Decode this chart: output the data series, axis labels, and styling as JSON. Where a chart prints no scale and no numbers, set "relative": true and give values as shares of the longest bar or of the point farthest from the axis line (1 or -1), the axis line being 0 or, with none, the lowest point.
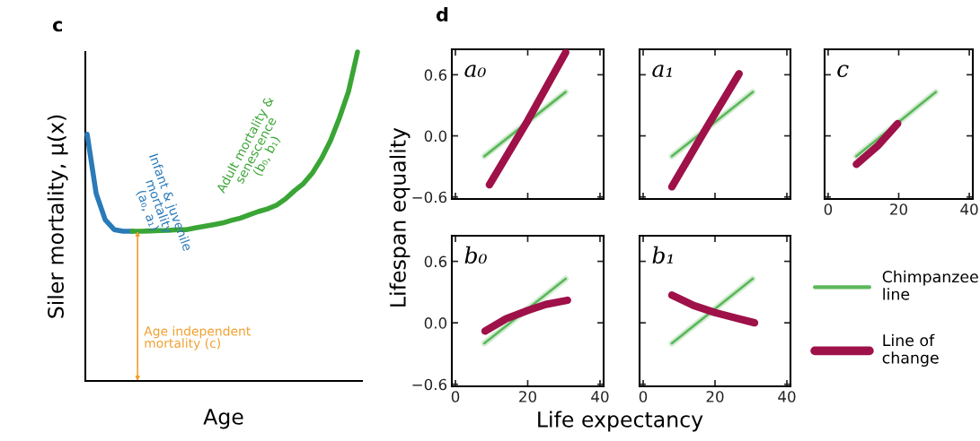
{
  "chart_data": [
    {
      "type": "line",
      "title": "c",
      "xlabel": "Age",
      "ylabel": "Siler mortality, μ(x)",
      "relative": true,
      "categories": [
        null,
        null,
        null,
        null,
        null,
        null,
        null,
        null,
        null,
        null,
        null,
        null,
        null,
        null,
        null,
        null,
        null,
        null,
        null,
        null,
        null,
        null,
        null,
        null,
        null,
        null,
        null,
        null,
        null,
        null,
        null
      ],
      "series": [
        {
          "color": "#2a7ab8",
          "values": [
            0.75,
            0.57,
            0.49,
            0.46,
            0.455,
            0.455,
            null,
            null,
            null,
            null,
            null,
            null,
            null,
            null,
            null,
            null,
            null,
            null,
            null,
            null,
            null,
            null,
            null,
            null,
            null,
            null,
            null,
            null,
            null,
            null,
            null
          ]
        },
        {
          "color": "#3aa535",
          "values": [
            null,
            null,
            null,
            null,
            null,
            0.455,
            0.455,
            0.456,
            0.457,
            0.458,
            0.46,
            0.46,
            0.465,
            0.47,
            0.475,
            0.48,
            0.488,
            0.495,
            0.505,
            0.515,
            0.523,
            0.534,
            0.553,
            0.578,
            0.6,
            0.632,
            0.676,
            0.73,
            0.8,
            0.88,
            1.0
          ]
        }
      ],
      "annotations": [
        "Infant & juvenile\nmortality\n(a₀, a₁)",
        "Adult mortality &\nsenescence\n(b₀, b₁)",
        "Age independent\nmortality (c)"
      ],
      "grid": false
    },
    {
      "type": "line",
      "title": "a₀",
      "ylabel": "Lifespan equality",
      "annotations": [
        "d"
      ],
      "xlim": [
        -1,
        41
      ],
      "ylim": [
        -0.62,
        0.85
      ],
      "xticks": [
        {
          "value": 0,
          "label": null
        },
        {
          "value": 20,
          "label": null
        },
        {
          "value": 40,
          "label": null
        }
      ],
      "yticks": [
        {
          "value": -0.6,
          "label": "−0.6"
        },
        {
          "value": 0,
          "label": "0.0"
        },
        0.6
      ],
      "tick_labels": "y",
      "grid": false,
      "legend": false,
      "series": [
        {
          "color": "#5cb85a",
          "x": [
            8,
            30.5
          ],
          "values": [
            -0.2,
            0.43
          ]
        },
        {
          "color": "#9e1149",
          "x": [
            9.4,
            20,
            30.5
          ],
          "values": [
            -0.48,
            0.15,
            0.82
          ]
        }
      ]
    },
    {
      "type": "line",
      "title": "a₁",
      "xlim": [
        -1,
        41
      ],
      "ylim": [
        -0.62,
        0.85
      ],
      "xticks": [
        {
          "value": 0,
          "label": null
        },
        {
          "value": 20,
          "label": null
        },
        {
          "value": 40,
          "label": null
        }
      ],
      "yticks": [
        {
          "value": -0.6,
          "label": null
        },
        {
          "value": 0,
          "label": null
        },
        {
          "value": 0.6,
          "label": null
        }
      ],
      "tick_labels": false,
      "grid": false,
      "legend": false,
      "series": [
        {
          "color": "#5cb85a",
          "x": [
            8,
            30.5
          ],
          "values": [
            -0.2,
            0.43
          ]
        },
        {
          "color": "#9e1149",
          "x": [
            8,
            18,
            26.7
          ],
          "values": [
            -0.5,
            0.1,
            0.61
          ]
        }
      ]
    },
    {
      "type": "line",
      "title": "c",
      "xlim": [
        -1,
        41
      ],
      "ylim": [
        -0.62,
        0.85
      ],
      "xticks": [
        0,
        20,
        40
      ],
      "yticks": [
        {
          "value": -0.6,
          "label": null
        },
        {
          "value": 0,
          "label": null
        },
        {
          "value": 0.6,
          "label": null
        }
      ],
      "tick_labels": "x",
      "grid": false,
      "legend": false,
      "series": [
        {
          "color": "#5cb85a",
          "x": [
            8,
            30.5
          ],
          "values": [
            -0.2,
            0.43
          ]
        },
        {
          "color": "#9e1149",
          "x": [
            8,
            14,
            19.7
          ],
          "values": [
            -0.28,
            -0.1,
            0.12
          ]
        }
      ]
    },
    {
      "type": "line",
      "title": "b₀",
      "xlim": [
        -1,
        41
      ],
      "ylim": [
        -0.62,
        0.85
      ],
      "xticks": [
        0,
        20,
        40
      ],
      "yticks": [
        {
          "value": -0.6,
          "label": "−0.6"
        },
        {
          "value": 0,
          "label": "0.0"
        },
        0.6
      ],
      "grid": false,
      "legend": false,
      "series": [
        {
          "color": "#5cb85a",
          "x": [
            8,
            30.5
          ],
          "values": [
            -0.2,
            0.43
          ]
        },
        {
          "color": "#9e1149",
          "x": [
            8.2,
            14,
            20,
            25,
            31
          ],
          "values": [
            -0.08,
            0.04,
            0.12,
            0.18,
            0.22
          ]
        }
      ]
    },
    {
      "type": "line",
      "title": "b₁",
      "xlabel": "Life expectancy",
      "xlim": [
        -1,
        41
      ],
      "ylim": [
        -0.62,
        0.85
      ],
      "xticks": [
        0,
        20,
        40
      ],
      "yticks": [
        {
          "value": -0.6,
          "label": null
        },
        {
          "value": 0,
          "label": null
        },
        {
          "value": 0.6,
          "label": null
        }
      ],
      "tick_labels": "x",
      "grid": false,
      "legend": "right",
      "series": [
        {
          "name": "Chimpanzee\nline",
          "color": "#5cb85a",
          "x": [
            8,
            30.5
          ],
          "values": [
            -0.2,
            0.43
          ]
        },
        {
          "name": "Line of\nchange",
          "color": "#9e1149",
          "x": [
            8,
            14,
            20,
            25.5,
            31
          ],
          "values": [
            0.27,
            0.17,
            0.1,
            0.05,
            0.0
          ]
        }
      ]
    }
  ]
}
